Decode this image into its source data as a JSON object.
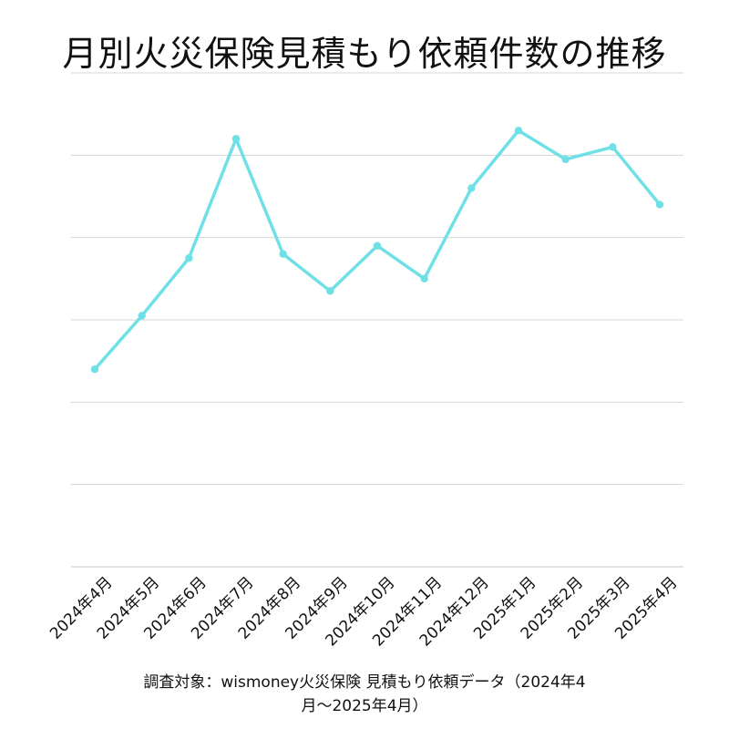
{
  "title": "月別火災保険見積もり依頼件数の推移",
  "caption": {
    "line1": "調査対象：wismoney火災保険 見積もり依頼データ（2024年4",
    "line2": "月〜2025年4月）"
  },
  "colors": {
    "line": "#6ee0e6",
    "grid": "#d4d4d4",
    "text": "#111111"
  },
  "chart_data": {
    "type": "line",
    "title": "月別火災保険見積もり依頼件数の推移",
    "categories": [
      "2024年4月",
      "2024年5月",
      "2024年6月",
      "2024年7月",
      "2024年8月",
      "2024年9月",
      "2024年10月",
      "2024年11月",
      "2024年12月",
      "2025年1月",
      "2025年2月",
      "2025年3月",
      "2025年4月"
    ],
    "series": [
      {
        "values": [
          2.4,
          3.05,
          3.75,
          5.2,
          3.8,
          3.35,
          3.9,
          3.5,
          4.6,
          5.3,
          4.95,
          5.1,
          4.4
        ]
      }
    ],
    "ylim": [
      0,
      6
    ],
    "y_tick_labels_visible": false,
    "grid": true,
    "legend": "none"
  }
}
